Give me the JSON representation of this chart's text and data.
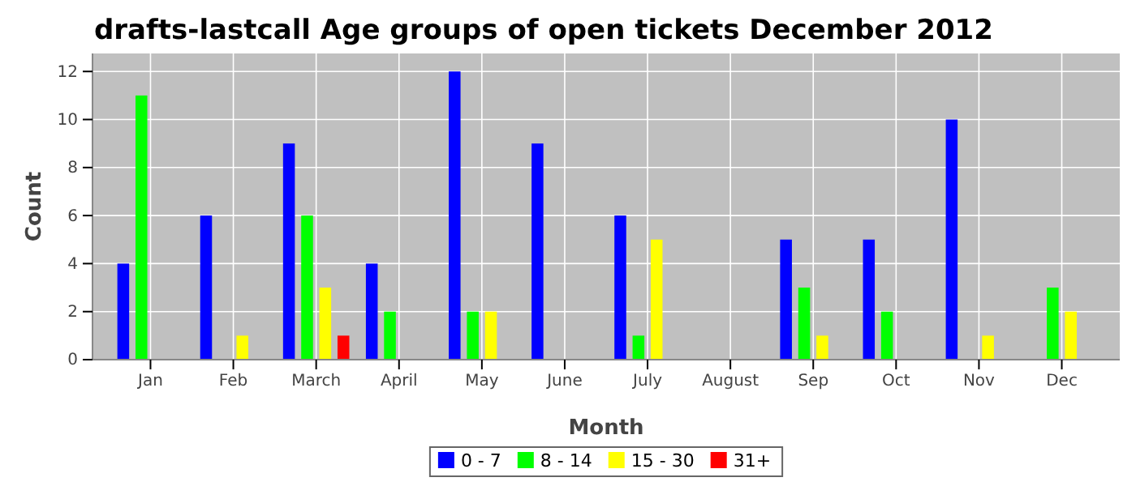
{
  "chart_data": {
    "type": "bar",
    "title": "drafts-lastcall Age groups of open tickets December 2012",
    "xlabel": "Month",
    "ylabel": "Count",
    "categories": [
      "Jan",
      "Feb",
      "March",
      "April",
      "May",
      "June",
      "July",
      "August",
      "Sep",
      "Oct",
      "Nov",
      "Dec"
    ],
    "series": [
      {
        "name": "0 - 7",
        "color": "#0000ff",
        "values": [
          4,
          6,
          9,
          4,
          12,
          9,
          6,
          0,
          5,
          5,
          10,
          0
        ]
      },
      {
        "name": "8 - 14",
        "color": "#00ff00",
        "values": [
          11,
          0,
          6,
          2,
          2,
          0,
          1,
          0,
          3,
          2,
          0,
          3
        ]
      },
      {
        "name": "15 - 30",
        "color": "#ffff00",
        "values": [
          0,
          1,
          3,
          0,
          2,
          0,
          5,
          0,
          1,
          0,
          1,
          2
        ]
      },
      {
        "name": "31+",
        "color": "#ff0000",
        "values": [
          0,
          0,
          1,
          0,
          0,
          0,
          0,
          0,
          0,
          0,
          0,
          0
        ]
      }
    ],
    "ylim": [
      0,
      12.75
    ],
    "yticks": [
      0,
      2,
      4,
      6,
      8,
      10,
      12
    ],
    "grid": true,
    "legend": "bottom"
  }
}
